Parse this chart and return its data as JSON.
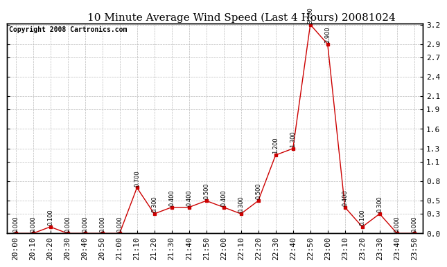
{
  "title": "10 Minute Average Wind Speed (Last 4 Hours) 20081024",
  "copyright_text": "Copyright 2008 Cartronics.com",
  "x_labels": [
    "20:00",
    "20:10",
    "20:20",
    "20:30",
    "20:40",
    "20:50",
    "21:00",
    "21:10",
    "21:20",
    "21:30",
    "21:40",
    "21:50",
    "22:00",
    "22:10",
    "22:20",
    "22:30",
    "22:40",
    "22:50",
    "23:00",
    "23:10",
    "23:20",
    "23:30",
    "23:40",
    "23:50"
  ],
  "y_values": [
    0.0,
    0.0,
    0.1,
    0.0,
    0.0,
    0.0,
    0.0,
    0.7,
    0.3,
    0.4,
    0.4,
    0.5,
    0.4,
    0.3,
    0.5,
    1.2,
    1.3,
    3.2,
    2.9,
    0.4,
    0.1,
    0.3,
    0.0,
    0.0
  ],
  "point_labels": [
    "0.000",
    "0.000",
    "0.100",
    "0.000",
    "0.000",
    "0.000",
    "0.000",
    "0.700",
    "0.300",
    "0.400",
    "0.400",
    "0.500",
    "0.400",
    "0.300",
    "0.500",
    "1.200",
    "1.300",
    "3.200",
    "2.900",
    "0.400",
    "0.100",
    "0.300",
    "0.000",
    "0.000"
  ],
  "line_color": "#cc0000",
  "marker_color": "#cc0000",
  "background_color": "#ffffff",
  "grid_color": "#bbbbbb",
  "ylim_min": 0.0,
  "ylim_max": 3.2,
  "yticks": [
    0.0,
    0.3,
    0.5,
    0.8,
    1.1,
    1.3,
    1.6,
    1.9,
    2.1,
    2.4,
    2.7,
    2.9,
    3.2
  ],
  "title_fontsize": 11,
  "tick_fontsize": 8,
  "copyright_fontsize": 7,
  "annotation_fontsize": 6
}
